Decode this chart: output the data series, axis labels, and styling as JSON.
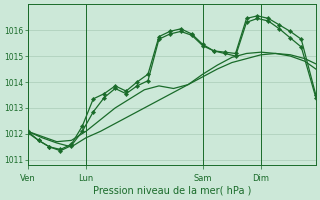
{
  "background_color": "#cce8d8",
  "grid_color": "#aaccb8",
  "line_color": "#1a6b2a",
  "xlabel": "Pression niveau de la mer( hPa )",
  "ylim": [
    1010.8,
    1017.0
  ],
  "yticks": [
    1011,
    1012,
    1013,
    1014,
    1015,
    1016
  ],
  "xtick_labels": [
    "Ven",
    "Lun",
    "Sam",
    "Dim"
  ],
  "xtick_positions": [
    0,
    16,
    48,
    64
  ],
  "total_points": 80,
  "line1_x": [
    0,
    4,
    8,
    12,
    16,
    20,
    24,
    28,
    32,
    36,
    40,
    44,
    48,
    52,
    56,
    60,
    64,
    68,
    72,
    76,
    79
  ],
  "line1_y": [
    1012.1,
    1011.85,
    1011.65,
    1011.5,
    1011.85,
    1012.1,
    1012.4,
    1012.7,
    1013.0,
    1013.3,
    1013.6,
    1013.9,
    1014.2,
    1014.5,
    1014.75,
    1014.9,
    1015.05,
    1015.1,
    1015.05,
    1014.9,
    1014.7
  ],
  "line2_x": [
    0,
    4,
    8,
    12,
    16,
    20,
    24,
    28,
    32,
    36,
    40,
    44,
    48,
    52,
    56,
    60,
    64,
    68,
    72,
    76,
    79
  ],
  "line2_y": [
    1012.1,
    1011.9,
    1011.7,
    1011.75,
    1012.1,
    1012.55,
    1013.0,
    1013.35,
    1013.7,
    1013.85,
    1013.75,
    1013.9,
    1014.3,
    1014.65,
    1014.95,
    1015.1,
    1015.15,
    1015.1,
    1015.0,
    1014.8,
    1014.5
  ],
  "line3_x": [
    0,
    3,
    6,
    9,
    12,
    15,
    18,
    21,
    24,
    27,
    30,
    33,
    36,
    39,
    42,
    45,
    48,
    51,
    54,
    57,
    60,
    63,
    66,
    69,
    72,
    75,
    79
  ],
  "line3_y": [
    1012.1,
    1011.75,
    1011.5,
    1011.4,
    1011.6,
    1012.3,
    1013.35,
    1013.55,
    1013.85,
    1013.65,
    1014.0,
    1014.3,
    1015.75,
    1015.95,
    1016.05,
    1015.85,
    1015.45,
    1015.2,
    1015.15,
    1015.1,
    1016.45,
    1016.55,
    1016.45,
    1016.2,
    1015.95,
    1015.65,
    1013.5
  ],
  "line4_x": [
    0,
    3,
    6,
    9,
    12,
    15,
    18,
    21,
    24,
    27,
    30,
    33,
    36,
    39,
    42,
    45,
    48,
    51,
    54,
    57,
    60,
    63,
    66,
    69,
    72,
    75,
    79
  ],
  "line4_y": [
    1012.05,
    1011.75,
    1011.5,
    1011.35,
    1011.55,
    1012.1,
    1012.85,
    1013.4,
    1013.75,
    1013.55,
    1013.85,
    1014.05,
    1015.65,
    1015.85,
    1015.95,
    1015.8,
    1015.4,
    1015.2,
    1015.1,
    1015.0,
    1016.3,
    1016.45,
    1016.35,
    1016.05,
    1015.7,
    1015.35,
    1013.4
  ]
}
